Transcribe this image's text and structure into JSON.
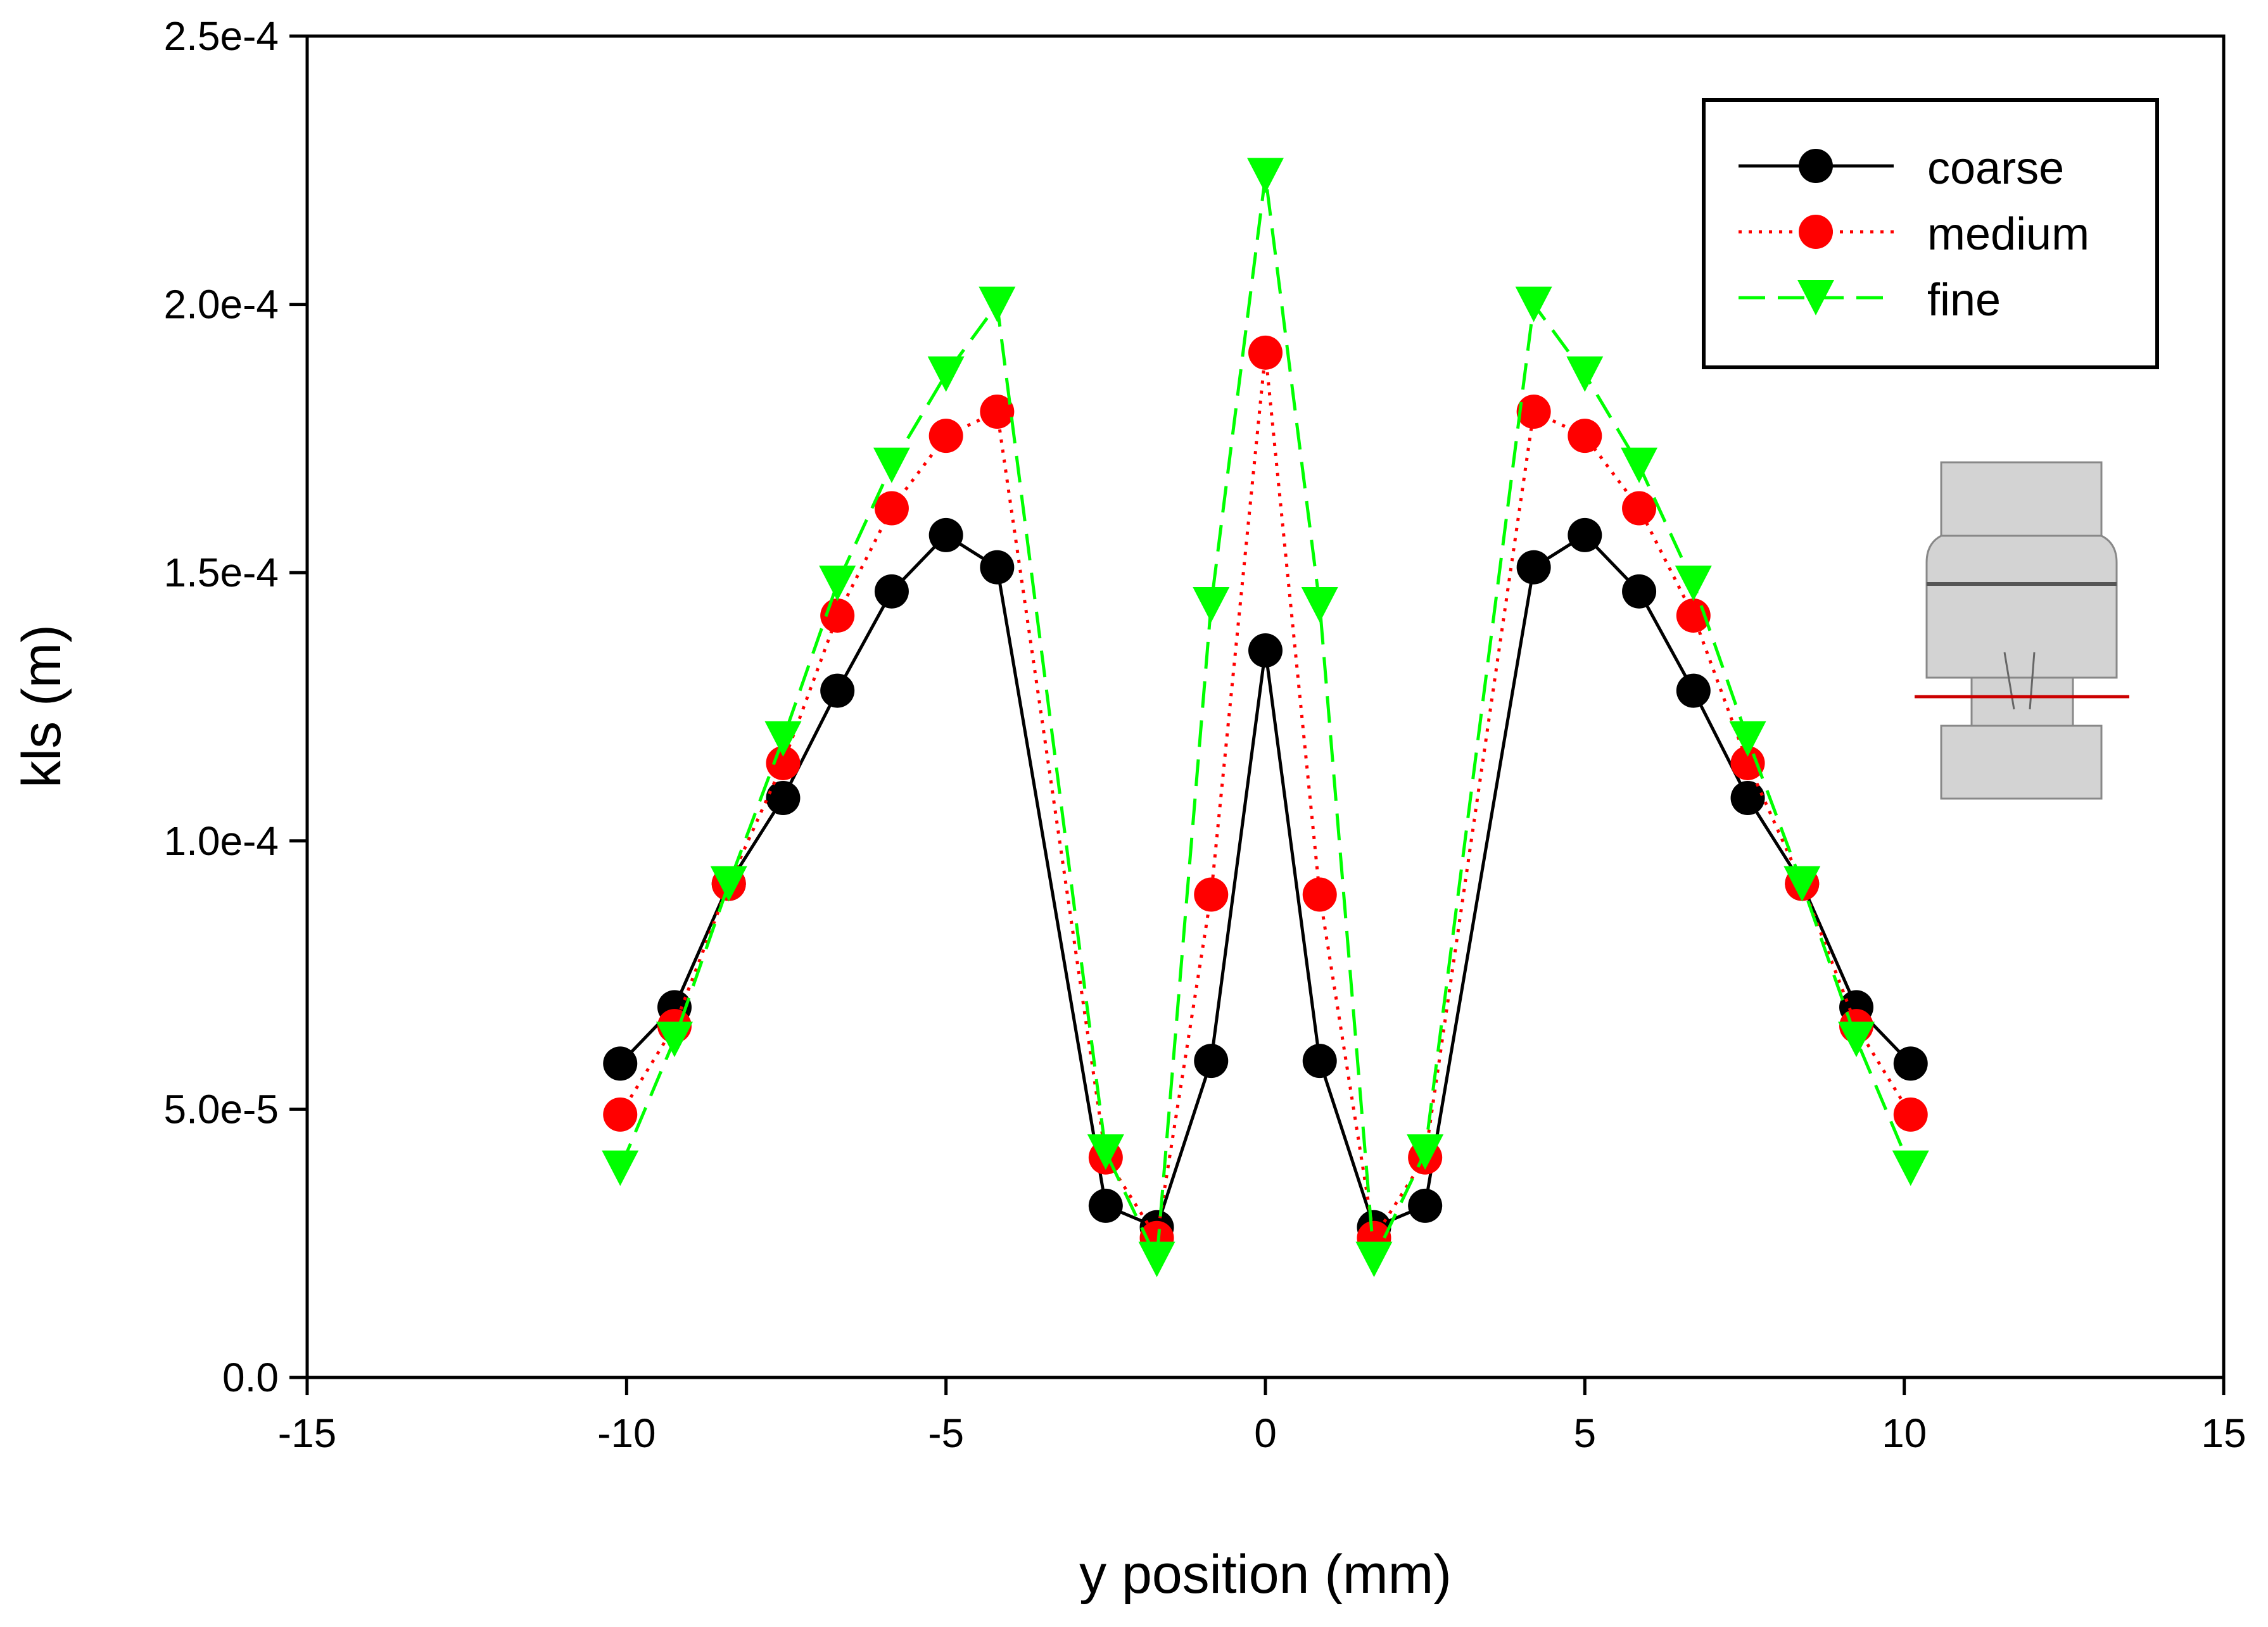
{
  "chart_data": {
    "type": "line",
    "title": "",
    "xlabel": "y position (mm)",
    "ylabel": "kls (m)",
    "xlim": [
      -15,
      15
    ],
    "ylim": [
      0,
      0.00025
    ],
    "xticks": [
      -15,
      -10,
      -5,
      0,
      5,
      10,
      15
    ],
    "xtick_labels": [
      "-15",
      "-10",
      "-5",
      "0",
      "5",
      "10",
      "15"
    ],
    "yticks": [
      0,
      5e-05,
      0.0001,
      0.00015,
      0.0002,
      0.00025
    ],
    "ytick_labels": [
      "0.0",
      "5.0e-5",
      "1.0e-4",
      "1.5e-4",
      "2.0e-4",
      "2.5e-4"
    ],
    "grid": false,
    "legend_position": "top-right",
    "x": [
      -10.1,
      -9.25,
      -8.4,
      -7.55,
      -6.7,
      -5.85,
      -5.0,
      -4.2,
      -2.5,
      -1.7,
      -0.85,
      0,
      0.85,
      1.7,
      2.5,
      4.2,
      5.0,
      5.85,
      6.7,
      7.55,
      8.4,
      9.25,
      10.1
    ],
    "series": [
      {
        "name": "coarse",
        "color": "#000000",
        "line_style": "solid",
        "marker": "circle",
        "values": [
          5.85e-05,
          6.9e-05,
          9.2e-05,
          0.000108,
          0.000128,
          0.0001465,
          0.000157,
          0.000151,
          3.2e-05,
          2.8e-05,
          5.9e-05,
          0.0001355,
          5.9e-05,
          2.8e-05,
          3.2e-05,
          0.000151,
          0.000157,
          0.0001465,
          0.000128,
          0.000108,
          9.2e-05,
          6.9e-05,
          5.85e-05
        ]
      },
      {
        "name": "medium",
        "color": "#ff0000",
        "line_style": "dotted",
        "marker": "circle",
        "values": [
          4.9e-05,
          6.55e-05,
          9.2e-05,
          0.0001145,
          0.000142,
          0.000162,
          0.0001755,
          0.00018,
          4.1e-05,
          2.6e-05,
          9e-05,
          0.000191,
          9e-05,
          2.6e-05,
          4.1e-05,
          0.00018,
          0.0001755,
          0.000162,
          0.000142,
          0.0001145,
          9.2e-05,
          6.55e-05,
          4.9e-05
        ]
      },
      {
        "name": "fine",
        "color": "#00ff00",
        "line_style": "dashed",
        "marker": "triangle-down",
        "values": [
          3.9e-05,
          6.3e-05,
          9.2e-05,
          0.000119,
          0.000148,
          0.00017,
          0.000187,
          0.0002,
          4.2e-05,
          2.2e-05,
          0.000144,
          0.000224,
          0.000144,
          2.2e-05,
          4.2e-05,
          0.0002,
          0.000187,
          0.00017,
          0.000148,
          0.000119,
          9.2e-05,
          6.3e-05,
          3.9e-05
        ]
      }
    ]
  }
}
